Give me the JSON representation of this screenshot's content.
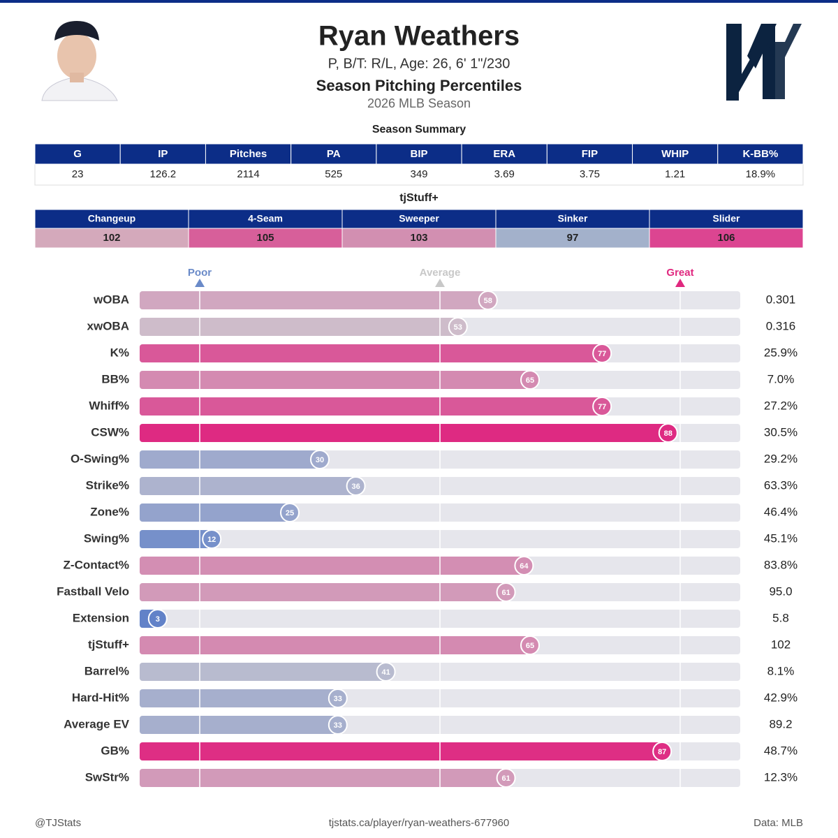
{
  "header": {
    "name": "Ryan Weathers",
    "info": "P, B/T: R/L, Age: 26, 6' 1\"/230",
    "title": "Season Pitching Percentiles",
    "season": "2026 MLB Season"
  },
  "summary": {
    "title": "Season Summary",
    "columns": [
      "G",
      "IP",
      "Pitches",
      "PA",
      "BIP",
      "ERA",
      "FIP",
      "WHIP",
      "K-BB%"
    ],
    "values": [
      "23",
      "126.2",
      "2114",
      "525",
      "349",
      "3.69",
      "3.75",
      "1.21",
      "18.9%"
    ]
  },
  "stuff": {
    "title": "tjStuff+",
    "columns": [
      "Changeup",
      "4-Seam",
      "Sweeper",
      "Sinker",
      "Slider"
    ],
    "values": [
      102,
      105,
      103,
      97,
      106
    ],
    "colors": [
      "#d4a9bb",
      "#d75f9a",
      "#d28fb1",
      "#a3b1cb",
      "#dc4591"
    ]
  },
  "chart_data": {
    "type": "bar",
    "orientation": "horizontal",
    "categories": [
      "wOBA",
      "xwOBA",
      "K%",
      "BB%",
      "Whiff%",
      "CSW%",
      "O-Swing%",
      "Strike%",
      "Zone%",
      "Swing%",
      "Z-Contact%",
      "Fastball Velo",
      "Extension",
      "tjStuff+",
      "Barrel%",
      "Hard-Hit%",
      "Average EV",
      "GB%",
      "SwStr%"
    ],
    "values": [
      58,
      53,
      77,
      65,
      77,
      88,
      30,
      36,
      25,
      12,
      64,
      61,
      3,
      65,
      41,
      33,
      33,
      87,
      61
    ],
    "stats": [
      "0.301",
      "0.316",
      "25.9%",
      "7.0%",
      "27.2%",
      "30.5%",
      "29.2%",
      "63.3%",
      "46.4%",
      "45.1%",
      "83.8%",
      "95.0",
      "5.8",
      "102",
      "8.1%",
      "42.9%",
      "89.2",
      "48.7%",
      "12.3%"
    ],
    "xlim": [
      0,
      100
    ],
    "xticks": [
      {
        "value": 10,
        "label": "Poor"
      },
      {
        "value": 50,
        "label": "Average"
      },
      {
        "value": 90,
        "label": "Great"
      }
    ],
    "xtick_colors": [
      "#6a8ac8",
      "#c8c8c8",
      "#e0287f"
    ],
    "color_scale": [
      "#5b7ec8",
      "#cdc8d0",
      "#de2a82"
    ]
  },
  "footer": {
    "left": "@TJStats",
    "center": "tjstats.ca/player/ryan-weathers-677960",
    "right": "Data: MLB"
  }
}
